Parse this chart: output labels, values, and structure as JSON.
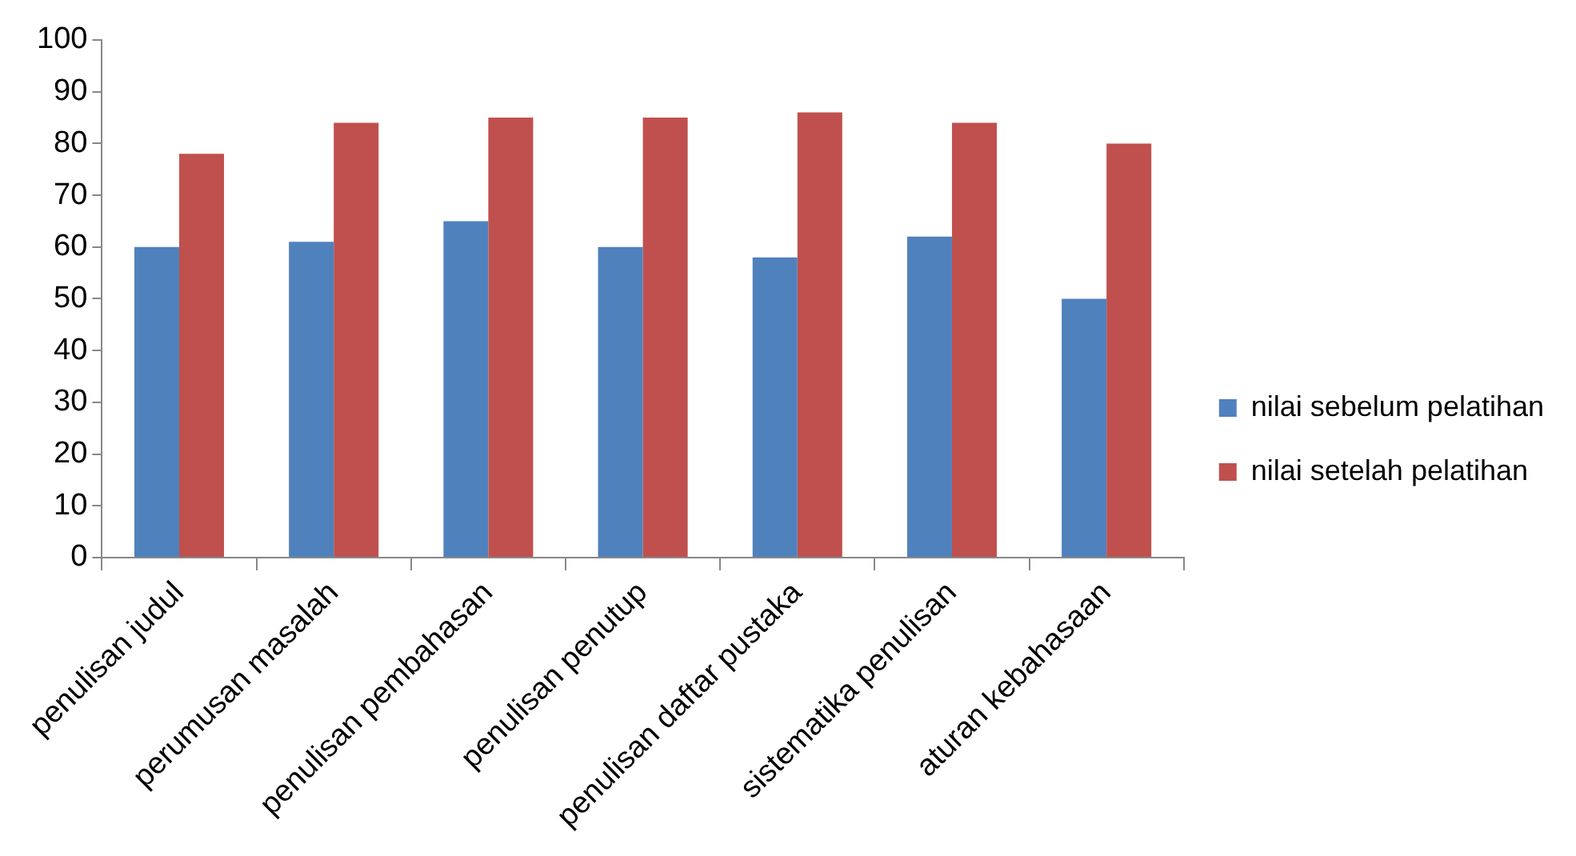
{
  "chart_data": {
    "type": "bar",
    "categories": [
      "penulisan judul",
      "perumusan masalah",
      "penulisan pembahasan",
      "penulisan penutup",
      "penulisan daftar pustaka",
      "sistematika penulisan",
      "aturan kebahasaan"
    ],
    "series": [
      {
        "name": "nilai sebelum pelatihan",
        "color": "#4f81bd",
        "values": [
          60,
          61,
          65,
          60,
          58,
          62,
          50
        ]
      },
      {
        "name": "nilai setelah pelatihan",
        "color": "#c0504d",
        "values": [
          78,
          84,
          85,
          85,
          86,
          84,
          80
        ]
      }
    ],
    "ylim": [
      0,
      100
    ],
    "yticks": [
      0,
      10,
      20,
      30,
      40,
      50,
      60,
      70,
      80,
      90,
      100
    ],
    "grid": false,
    "legend": "right"
  }
}
